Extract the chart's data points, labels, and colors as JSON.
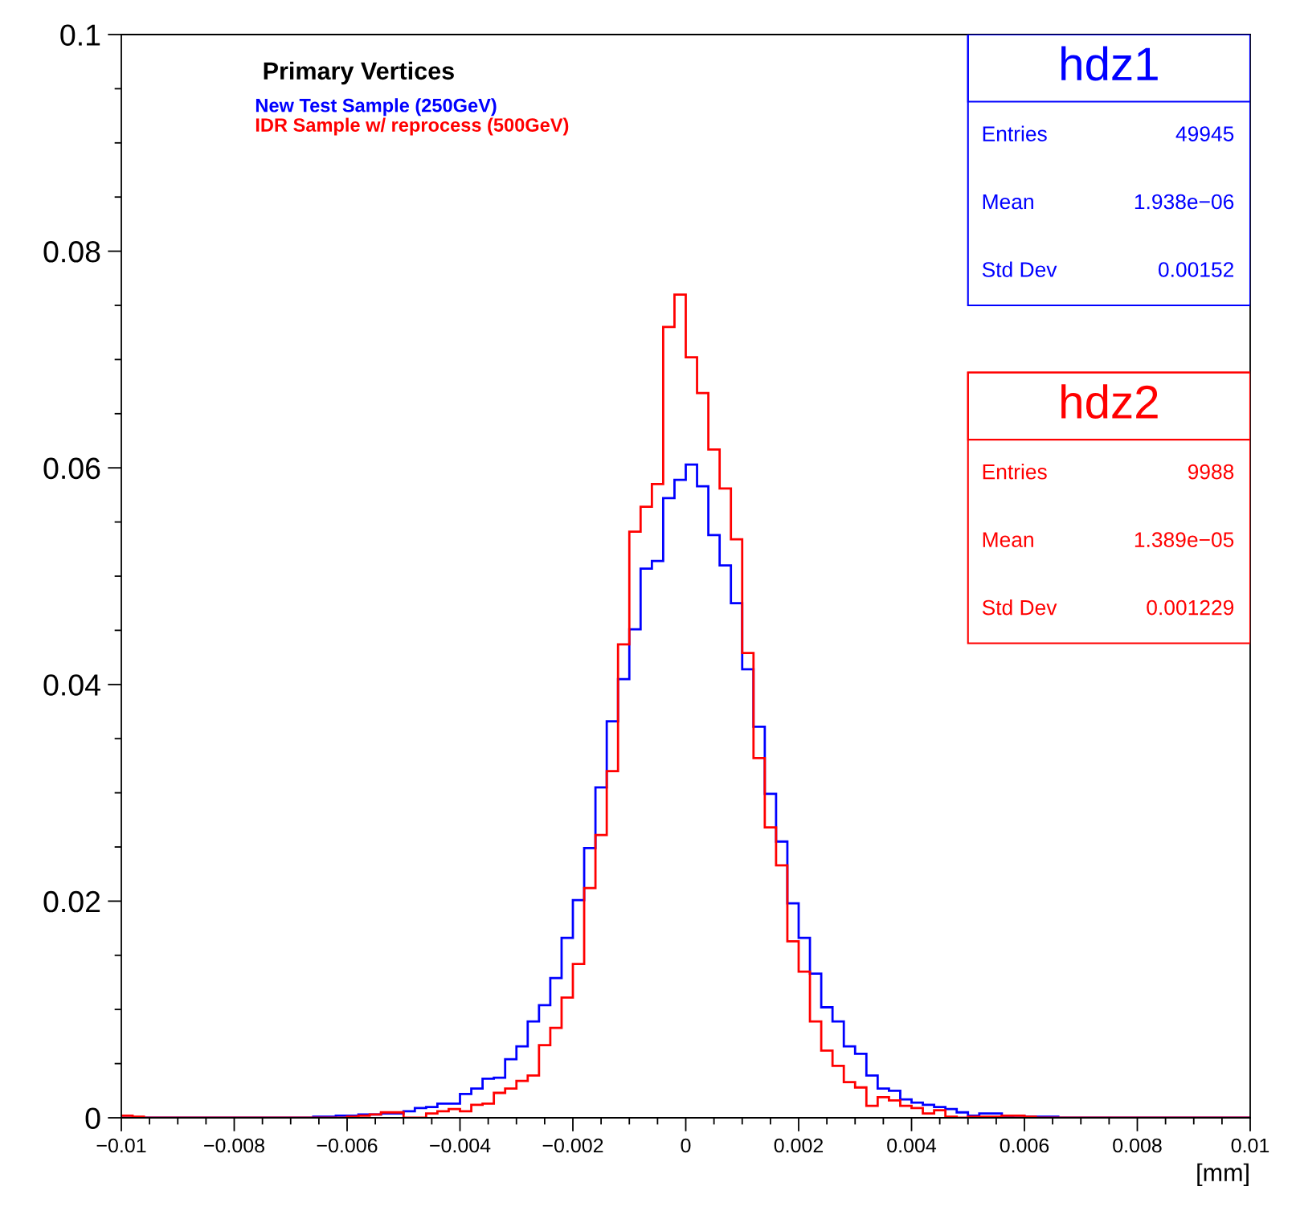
{
  "chart_data": {
    "type": "histogram",
    "title": "Primary Vertices",
    "xlabel": "[mm]",
    "bins": [
      -0.01,
      -0.0098,
      -0.0096,
      -0.0094,
      -0.0092,
      -0.009,
      -0.0088,
      -0.0086,
      -0.0084,
      -0.0082,
      -0.008,
      -0.0078,
      -0.0076,
      -0.0074,
      -0.0072,
      -0.007,
      -0.0068,
      -0.0066,
      -0.0064,
      -0.0062,
      -0.006,
      -0.0058,
      -0.0056,
      -0.0054,
      -0.0052,
      -0.005,
      -0.0048,
      -0.0046,
      -0.0044,
      -0.0042,
      -0.004,
      -0.0038,
      -0.0036,
      -0.0034,
      -0.0032,
      -0.003,
      -0.0028,
      -0.0026,
      -0.0024,
      -0.0022,
      -0.002,
      -0.0018,
      -0.0016,
      -0.0014,
      -0.0012,
      -0.001,
      -0.0008,
      -0.0006,
      -0.0004,
      -0.0002,
      0,
      0.0002,
      0.0004,
      0.0006,
      0.0008,
      0.001,
      0.0012,
      0.0014,
      0.0016,
      0.0018,
      0.002,
      0.0022,
      0.0024,
      0.0026,
      0.0028,
      0.003,
      0.0032,
      0.0034,
      0.0036,
      0.0038,
      0.004,
      0.0042,
      0.0044,
      0.0046,
      0.0048,
      0.005,
      0.0052,
      0.0054,
      0.0056,
      0.0058,
      0.006,
      0.0062,
      0.0064,
      0.0066,
      0.0068,
      0.007,
      0.0072,
      0.0074,
      0.0076,
      0.0078,
      0.008,
      0.0082,
      0.0084,
      0.0086,
      0.0088,
      0.009,
      0.0092,
      0.0094,
      0.0096,
      0.0098,
      0.01
    ],
    "series": [
      {
        "name": "New Test Sample (250GeV)",
        "color": "#0000ff",
        "values": [
          0,
          0,
          0,
          0,
          0,
          0,
          0,
          0,
          0,
          0,
          0,
          0,
          0,
          0,
          0,
          0,
          0,
          0.0001,
          0.0001,
          0.0002,
          0.0002,
          0.0003,
          0.0003,
          0.0004,
          0.0004,
          0.0006,
          0.0009,
          0.001,
          0.0013,
          0.0013,
          0.0022,
          0.0027,
          0.0036,
          0.0037,
          0.0054,
          0.0066,
          0.0089,
          0.0104,
          0.0129,
          0.0166,
          0.0201,
          0.0249,
          0.0305,
          0.0366,
          0.0405,
          0.0451,
          0.0507,
          0.0514,
          0.0572,
          0.0589,
          0.0603,
          0.0583,
          0.0538,
          0.051,
          0.0475,
          0.0414,
          0.0361,
          0.0299,
          0.0255,
          0.0198,
          0.0166,
          0.0133,
          0.0102,
          0.0089,
          0.0066,
          0.0059,
          0.0039,
          0.0027,
          0.0025,
          0.0017,
          0.0014,
          0.0012,
          0.001,
          0.0008,
          0.0005,
          0.0002,
          0.0004,
          0.0004,
          0.0001,
          0.0002,
          0.0001,
          0.0001,
          0.0001,
          0,
          0,
          0,
          0,
          0,
          0,
          0,
          0,
          0,
          0,
          0,
          0,
          0,
          0,
          0,
          0,
          0
        ]
      },
      {
        "name": "IDR Sample w/ reprocess (500GeV)",
        "color": "#ff0000",
        "values": [
          0.0002,
          0.0001,
          0,
          0,
          0,
          0,
          0,
          0,
          0,
          0,
          0,
          0,
          0,
          0,
          0,
          0,
          0,
          0,
          0,
          0,
          0.0001,
          0.0002,
          0.0003,
          0.0005,
          0.0005,
          0,
          0,
          0.0004,
          0.0006,
          0.0008,
          0.0006,
          0.0012,
          0.0013,
          0.0023,
          0.0027,
          0.0034,
          0.0039,
          0.0067,
          0.0083,
          0.0111,
          0.0142,
          0.0212,
          0.0261,
          0.032,
          0.0437,
          0.0541,
          0.0564,
          0.0585,
          0.073,
          0.076,
          0.0702,
          0.0669,
          0.0617,
          0.0581,
          0.0534,
          0.0429,
          0.0332,
          0.0268,
          0.0233,
          0.0163,
          0.0135,
          0.0089,
          0.0062,
          0.0048,
          0.0033,
          0.0028,
          0.0011,
          0.0019,
          0.0016,
          0.0011,
          0.0009,
          0.0004,
          0.0007,
          0.0001,
          0,
          0.0001,
          0.0001,
          0.0001,
          0.0002,
          0.0002,
          0.0001,
          0,
          0,
          0,
          0,
          0,
          0,
          0,
          0,
          0,
          0,
          0,
          0,
          0,
          0,
          0,
          0,
          0,
          0,
          0
        ]
      }
    ],
    "annotations": [
      "hdz1",
      "Entries 49945",
      "Mean 1.938e−06",
      "Std Dev 0.00152",
      "hdz2",
      "Entries 9988",
      "Mean 1.389e−05",
      "Std Dev 0.001229"
    ],
    "xlim": [
      -0.01,
      0.01
    ],
    "xticks": [
      {
        "value": -0.01,
        "label": "−0.01"
      },
      {
        "value": -0.008,
        "label": "−0.008"
      },
      {
        "value": -0.006,
        "label": "−0.006"
      },
      {
        "value": -0.004,
        "label": "−0.004"
      },
      {
        "value": -0.002,
        "label": "−0.002"
      },
      0,
      0.002,
      0.004,
      0.006,
      0.008,
      0.01
    ],
    "ylim": [
      0,
      0.1
    ],
    "yticks": [
      0,
      0.02,
      0.04,
      0.06,
      0.08,
      0.1
    ],
    "legend": "top left"
  }
}
